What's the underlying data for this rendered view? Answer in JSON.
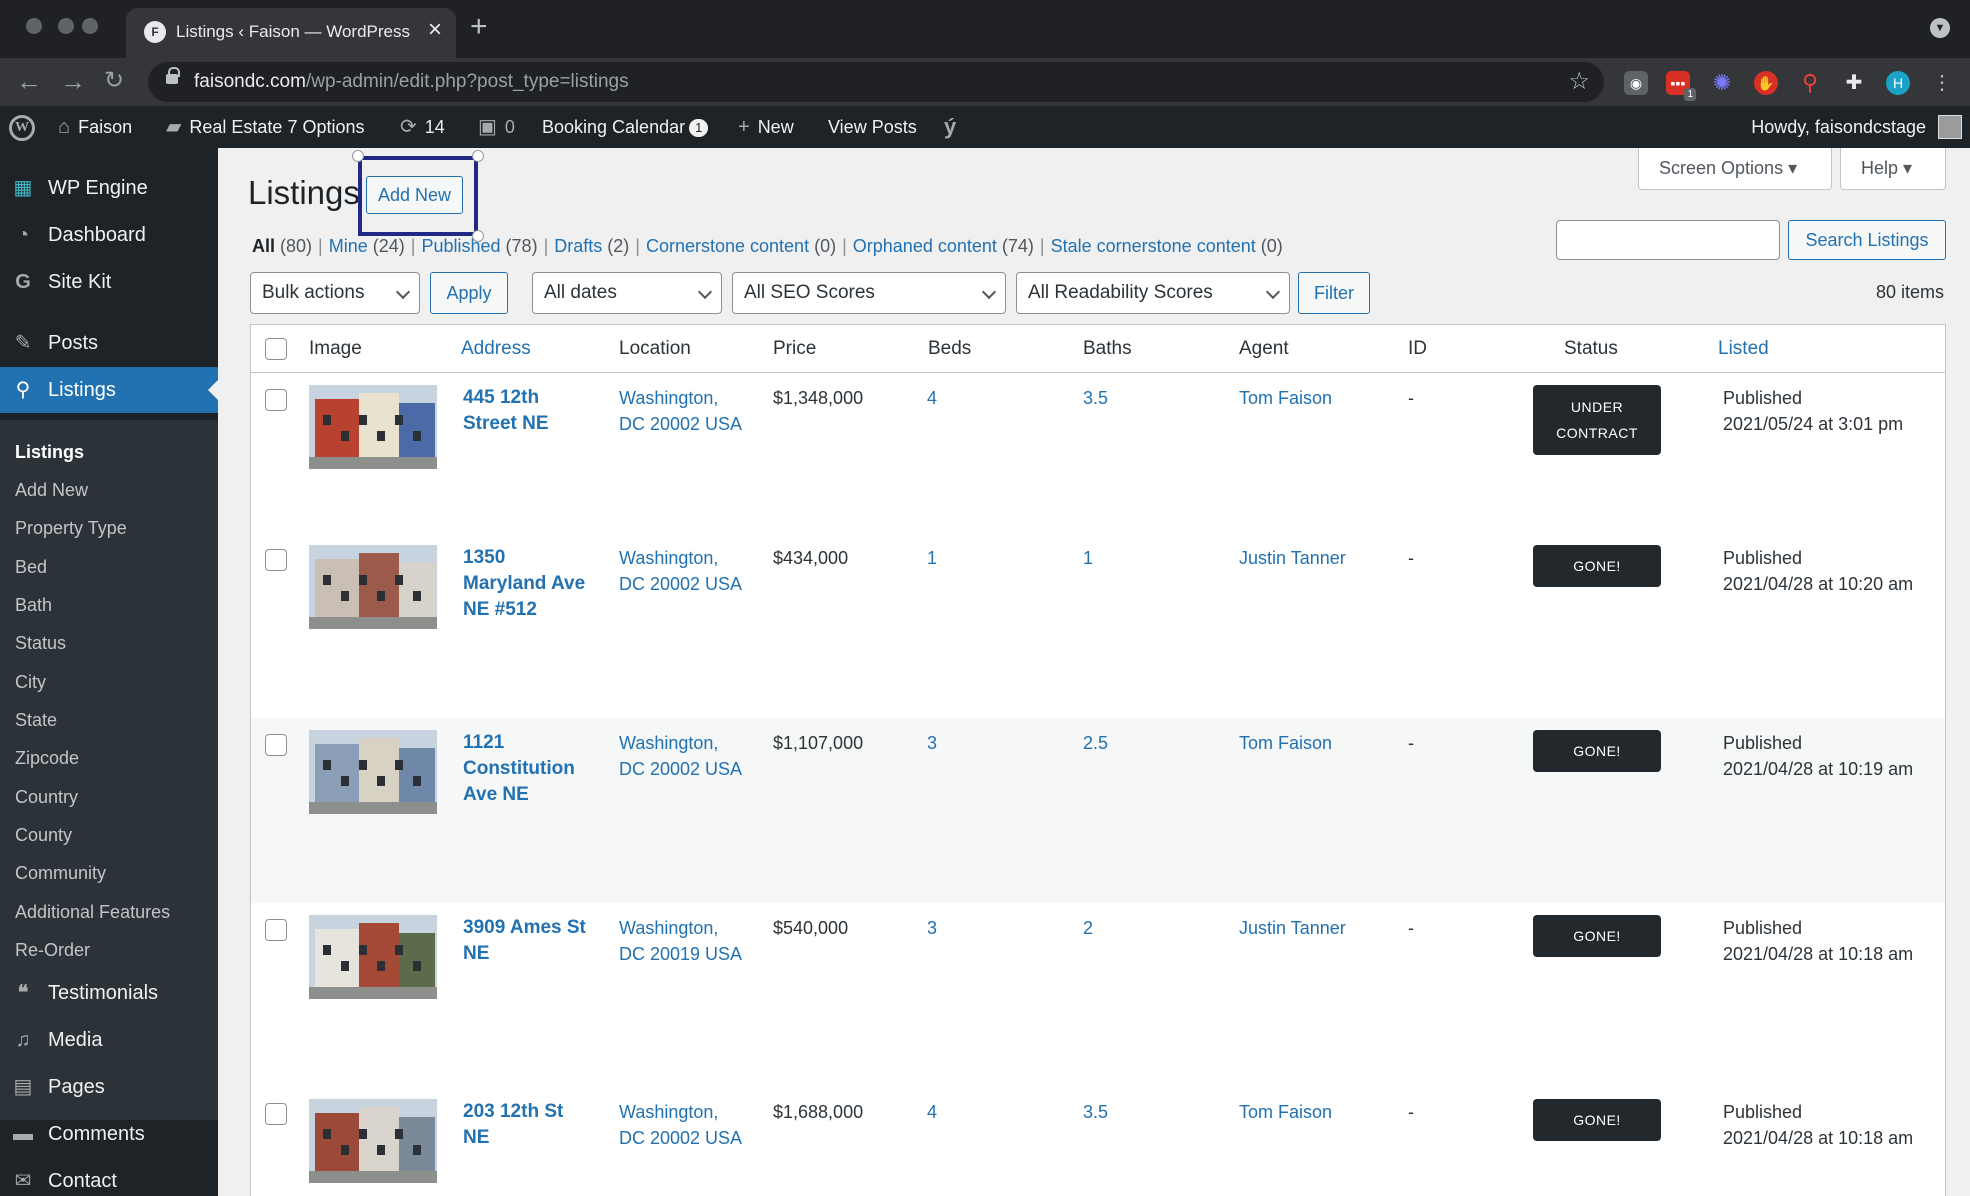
{
  "browser": {
    "tab_title": "Listings ‹ Faison — WordPress",
    "favicon_letter": "F",
    "url_host": "faisondc.com",
    "url_path": "/wp-admin/edit.php?post_type=listings",
    "ext_badge": "1"
  },
  "adminbar": {
    "site": "Faison",
    "theme_options": "Real Estate 7 Options",
    "updates": "14",
    "comments": "0",
    "booking": "Booking Calendar",
    "booking_badge": "1",
    "new": "New",
    "view_posts": "View Posts",
    "howdy": "Howdy, faisondcstage"
  },
  "sidebar": {
    "items_top": [
      {
        "label": "WP Engine",
        "icon": "wpengine-icon"
      },
      {
        "label": "Dashboard",
        "icon": "dashboard-icon"
      },
      {
        "label": "Site Kit",
        "icon": "google-icon"
      },
      {
        "label": "Posts",
        "icon": "pin-icon"
      },
      {
        "label": "Listings",
        "icon": "location-pin-icon"
      }
    ],
    "submenu": [
      "Listings",
      "Add New",
      "Property Type",
      "Bed",
      "Bath",
      "Status",
      "City",
      "State",
      "Zipcode",
      "Country",
      "County",
      "Community",
      "Additional Features",
      "Re-Order"
    ],
    "items_bottom": [
      {
        "label": "Testimonials",
        "icon": "quote-icon"
      },
      {
        "label": "Media",
        "icon": "media-icon"
      },
      {
        "label": "Pages",
        "icon": "pages-icon"
      },
      {
        "label": "Comments",
        "icon": "comment-icon"
      },
      {
        "label": "Contact",
        "icon": "mail-icon"
      }
    ]
  },
  "main": {
    "screen_options": "Screen Options",
    "help": "Help",
    "title": "Listings",
    "add_new": "Add New",
    "views": [
      {
        "label": "All",
        "count": "(80)"
      },
      {
        "label": "Mine",
        "count": "(24)"
      },
      {
        "label": "Published",
        "count": "(78)"
      },
      {
        "label": "Drafts",
        "count": "(2)"
      },
      {
        "label": "Cornerstone content",
        "count": "(0)"
      },
      {
        "label": "Orphaned content",
        "count": "(74)"
      },
      {
        "label": "Stale cornerstone content",
        "count": "(0)"
      }
    ],
    "search_button": "Search Listings",
    "bulk_actions": "Bulk actions",
    "apply": "Apply",
    "all_dates": "All dates",
    "seo_scores": "All SEO Scores",
    "readability": "All Readability Scores",
    "filter": "Filter",
    "items_count": "80 items"
  },
  "table": {
    "columns": [
      "Image",
      "Address",
      "Location",
      "Price",
      "Beds",
      "Baths",
      "Agent",
      "ID",
      "Status",
      "Listed"
    ],
    "rows": [
      {
        "address": "445 12th Street NE",
        "location": "Washington, DC 20002 USA",
        "price": "$1,348,000",
        "beds": "4",
        "baths": "3.5",
        "agent": "Tom Faison",
        "id": "-",
        "status": "UNDER CONTRACT",
        "listed_state": "Published",
        "listed_date": "2021/05/24 at 3:01 pm",
        "img_colors": [
          "#b8412f",
          "#e9e2cf",
          "#4a6aa8"
        ]
      },
      {
        "address": "1350 Maryland Ave NE #512",
        "location": "Washington, DC 20002 USA",
        "price": "$434,000",
        "beds": "1",
        "baths": "1",
        "agent": "Justin Tanner",
        "id": "-",
        "status": "GONE!",
        "listed_state": "Published",
        "listed_date": "2021/04/28 at 10:20 am",
        "img_colors": [
          "#c9bfb4",
          "#9c5a4a",
          "#d7d2ca"
        ]
      },
      {
        "address": "1121 Constitution Ave NE",
        "location": "Washington, DC 20002 USA",
        "price": "$1,107,000",
        "beds": "3",
        "baths": "2.5",
        "agent": "Tom Faison",
        "id": "-",
        "status": "GONE!",
        "listed_state": "Published",
        "listed_date": "2021/04/28 at 10:19 am",
        "img_colors": [
          "#8a9fb7",
          "#d8d2c5",
          "#6f87a8"
        ]
      },
      {
        "address": "3909 Ames St NE",
        "location": "Washington, DC 20019 USA",
        "price": "$540,000",
        "beds": "3",
        "baths": "2",
        "agent": "Justin Tanner",
        "id": "-",
        "status": "GONE!",
        "listed_state": "Published",
        "listed_date": "2021/04/28 at 10:18 am",
        "img_colors": [
          "#e6e4dd",
          "#a44a36",
          "#5c6b4a"
        ]
      },
      {
        "address": "203 12th St NE",
        "location": "Washington, DC 20002 USA",
        "price": "$1,688,000",
        "beds": "4",
        "baths": "3.5",
        "agent": "Tom Faison",
        "id": "-",
        "status": "GONE!",
        "listed_state": "Published",
        "listed_date": "2021/04/28 at 10:18 am",
        "img_colors": [
          "#9b4a38",
          "#d9d4cb",
          "#7a8a98"
        ]
      }
    ]
  }
}
